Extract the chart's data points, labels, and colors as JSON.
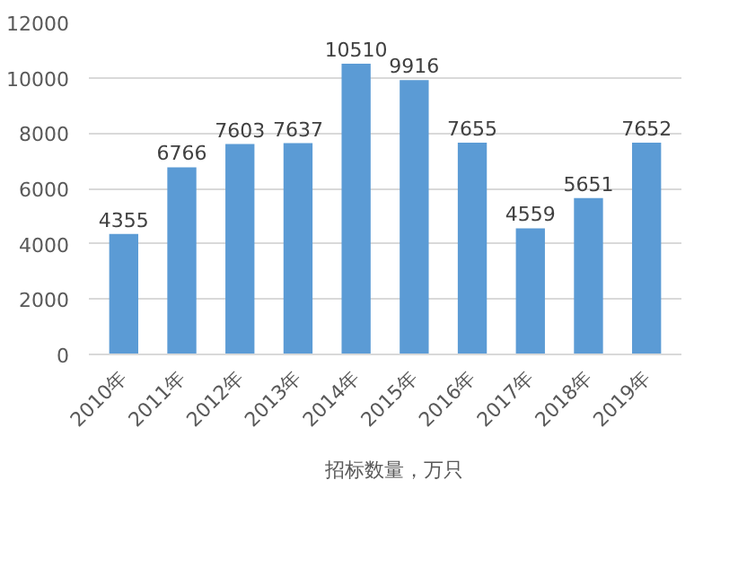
{
  "chart_data": {
    "type": "bar",
    "categories": [
      "2010年",
      "2011年",
      "2012年",
      "2013年",
      "2014年",
      "2015年",
      "2016年",
      "2017年",
      "2018年",
      "2019年"
    ],
    "series": [
      {
        "name": "招标数量，万只",
        "color": "#5b9bd5",
        "values": [
          4355,
          6766,
          7603,
          7637,
          10510,
          9916,
          7655,
          4559,
          5651,
          7652
        ]
      }
    ],
    "ylim": [
      0,
      12000
    ],
    "yticks": [
      0,
      2000,
      4000,
      6000,
      8000,
      10000,
      12000
    ],
    "grid": "y",
    "legend": "bottom",
    "data_labels": true
  }
}
